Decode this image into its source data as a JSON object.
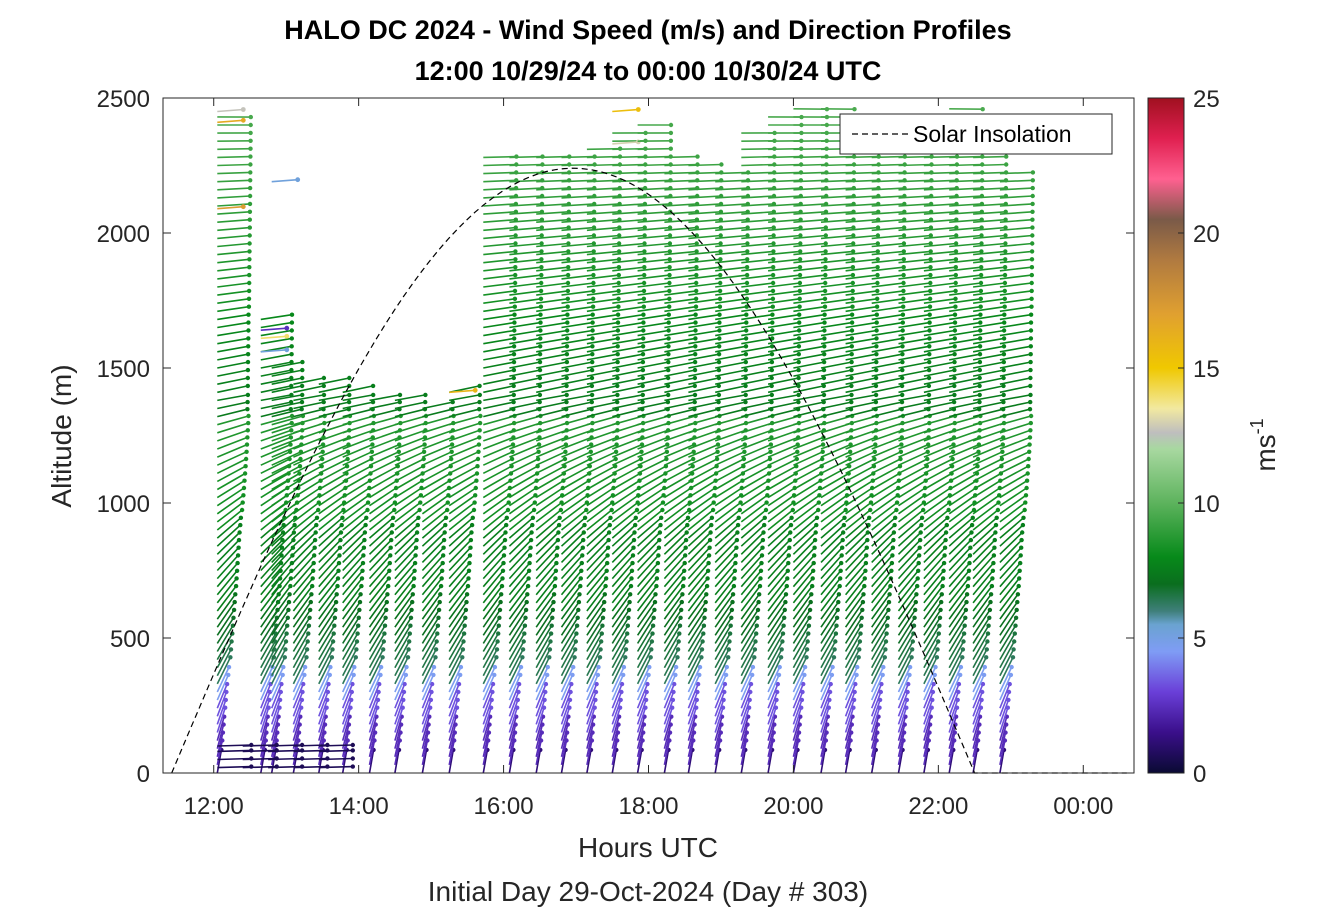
{
  "chart_data": {
    "type": "scatter",
    "title": "HALO DC 2024 - Wind Speed (m/s) and Direction Profiles",
    "subtitle": "12:00 10/29/24 to 00:00 10/30/24  UTC",
    "xlabel": "Hours UTC",
    "xlabel2": "Initial Day 29-Oct-2024 (Day # 303)",
    "ylabel": "Altitude (m)",
    "xlim": [
      11.3,
      24.7
    ],
    "ylim": [
      0,
      2500
    ],
    "x_ticks": [
      {
        "value": 12,
        "label": "12:00"
      },
      {
        "value": 14,
        "label": "14:00"
      },
      {
        "value": 16,
        "label": "16:00"
      },
      {
        "value": 18,
        "label": "18:00"
      },
      {
        "value": 20,
        "label": "20:00"
      },
      {
        "value": 22,
        "label": "22:00"
      },
      {
        "value": 24,
        "label": "00:00"
      }
    ],
    "y_ticks": [
      0,
      500,
      1000,
      1500,
      2000,
      2500
    ],
    "colorbar": {
      "label": "ms",
      "label_exponent": "-1",
      "range": [
        0,
        25
      ],
      "ticks": [
        0,
        5,
        10,
        15,
        20,
        25
      ],
      "stops": [
        {
          "v": 0,
          "c": "#0a0a33"
        },
        {
          "v": 1.5,
          "c": "#3a0f8a"
        },
        {
          "v": 3,
          "c": "#6a3fd8"
        },
        {
          "v": 4.5,
          "c": "#7f9cf5"
        },
        {
          "v": 5.5,
          "c": "#6aa3d0"
        },
        {
          "v": 6,
          "c": "#3f7f7a"
        },
        {
          "v": 7,
          "c": "#0a6e1e"
        },
        {
          "v": 8,
          "c": "#078a1a"
        },
        {
          "v": 10,
          "c": "#5db35d"
        },
        {
          "v": 12,
          "c": "#a8d8a0"
        },
        {
          "v": 12.6,
          "c": "#bebebe"
        },
        {
          "v": 13.5,
          "c": "#f2e9a0"
        },
        {
          "v": 15,
          "c": "#f0c800"
        },
        {
          "v": 17,
          "c": "#e0a030"
        },
        {
          "v": 19,
          "c": "#b07a40"
        },
        {
          "v": 20.5,
          "c": "#7a5a48"
        },
        {
          "v": 22,
          "c": "#ff6090"
        },
        {
          "v": 23.5,
          "c": "#e02050"
        },
        {
          "v": 25,
          "c": "#a01020"
        }
      ]
    },
    "legend": {
      "entries": [
        "Solar Insolation"
      ],
      "placement": "top-right"
    },
    "solar_insolation": {
      "x_start": 11.42,
      "x_end": 22.5,
      "peak_x": 17.0,
      "peak_altitude": 2240,
      "tail_end_x": 24.6
    },
    "profiles": [
      {
        "t": 12.05,
        "top": 2450,
        "special": [
          {
            "alt": 2450,
            "s": 12.7
          },
          {
            "alt": 2410,
            "s": 16.5
          },
          {
            "alt": 2090,
            "s": 17.2
          }
        ]
      },
      {
        "t": 12.65,
        "top": 1700,
        "special": [
          {
            "alt": 1640,
            "s": 2.5
          },
          {
            "alt": 1560,
            "s": 5.2
          },
          {
            "alt": 1610,
            "s": 14
          }
        ]
      },
      {
        "t": 12.8,
        "top": 1500,
        "special": [
          {
            "alt": 2190,
            "s": 5.2
          }
        ]
      },
      {
        "t": 13.1,
        "top": 1460
      },
      {
        "t": 13.45,
        "top": 1450
      },
      {
        "t": 13.78,
        "top": 1410
      },
      {
        "t": 14.15,
        "top": 1400
      },
      {
        "t": 14.5,
        "top": 1400
      },
      {
        "t": 14.88,
        "top": 1360
      },
      {
        "t": 15.25,
        "top": 1410,
        "special": [
          {
            "alt": 1410,
            "s": 16
          }
        ]
      },
      {
        "t": 15.72,
        "top": 2280
      },
      {
        "t": 16.08,
        "top": 2280
      },
      {
        "t": 16.45,
        "top": 2280
      },
      {
        "t": 16.8,
        "top": 2290
      },
      {
        "t": 17.15,
        "top": 2330
      },
      {
        "t": 17.5,
        "top": 2370,
        "special": [
          {
            "alt": 2450,
            "s": 15.5
          },
          {
            "alt": 2330,
            "s": 13
          }
        ]
      },
      {
        "t": 17.85,
        "top": 2400
      },
      {
        "t": 18.22,
        "top": 2290
      },
      {
        "t": 18.55,
        "top": 2270
      },
      {
        "t": 18.92,
        "top": 2230
      },
      {
        "t": 19.28,
        "top": 2390
      },
      {
        "t": 19.65,
        "top": 2440
      },
      {
        "t": 20.0,
        "top": 2460
      },
      {
        "t": 20.38,
        "top": 2460
      },
      {
        "t": 20.72,
        "top": 2450
      },
      {
        "t": 21.08,
        "top": 2440
      },
      {
        "t": 21.45,
        "top": 2440
      },
      {
        "t": 21.8,
        "top": 2450
      },
      {
        "t": 22.15,
        "top": 2480
      },
      {
        "t": 22.48,
        "top": 2450
      },
      {
        "t": 22.85,
        "top": 2230
      }
    ]
  }
}
